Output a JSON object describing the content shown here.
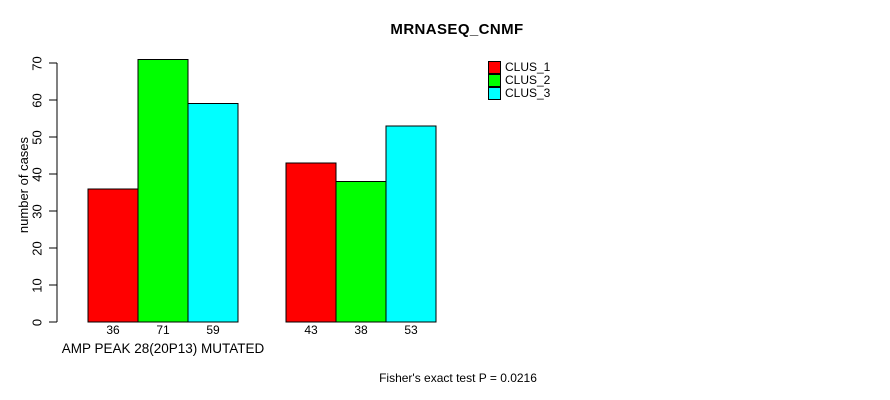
{
  "title": "MRNASEQ_CNMF",
  "colors": {
    "background": "#ffffff",
    "axis": "#000000",
    "bar_border": "#000000",
    "clus_1": "#ff0000",
    "clus_2": "#00ff00",
    "clus_3": "#00ffff"
  },
  "chart_data": {
    "type": "bar",
    "title": "MRNASEQ_CNMF",
    "xlabel": "",
    "ylabel": "number of cases",
    "ylim": [
      0,
      71
    ],
    "yticks": [
      0,
      10,
      20,
      30,
      40,
      50,
      60,
      70
    ],
    "grid": false,
    "legend_position": "top-right",
    "categories": [
      "AMP PEAK 28(20P13) MUTATED",
      ""
    ],
    "series": [
      {
        "name": "CLUS_1",
        "color": "#ff0000",
        "values": [
          36,
          43
        ]
      },
      {
        "name": "CLUS_2",
        "color": "#00ff00",
        "values": [
          71,
          38
        ]
      },
      {
        "name": "CLUS_3",
        "color": "#00ffff",
        "values": [
          59,
          53
        ]
      }
    ],
    "bar_value_labels_shown": true,
    "annotation": "Fisher's exact test P = 0.0216"
  }
}
